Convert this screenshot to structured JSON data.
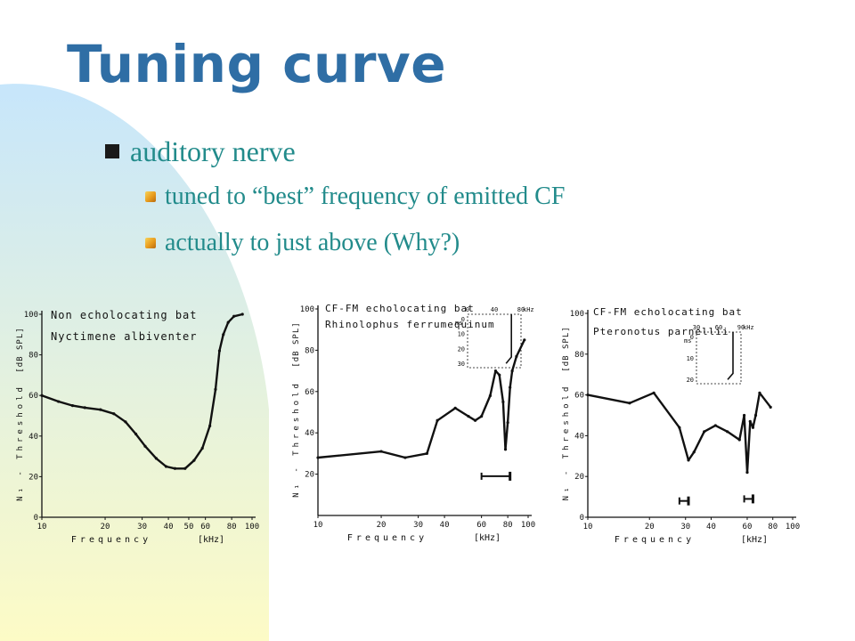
{
  "slide": {
    "title": "Tuning curve",
    "bullet": "auditory nerve",
    "subbullets": [
      "tuned to “best” frequency of emitted CF",
      "actually to just above (Why?)"
    ]
  },
  "colors": {
    "title": "#2f6ea5",
    "text": "#228b8b",
    "bg_gradient_top": "#c7e6fb",
    "bg_gradient_bottom": "#fdfbc6"
  },
  "icons": {
    "bullet": "square-bullet-icon",
    "subbullet": "diamond-bullet-icon"
  },
  "chart_data": [
    {
      "type": "line",
      "title": "Non echolocating bat",
      "subtitle": "Nyctimene albiventer",
      "xlabel": "Frequency",
      "xunit": "[kHz]",
      "ylabel": "N₁ - Threshold",
      "yunit": "[dB SPL]",
      "xscale": "log",
      "xlim": [
        10,
        100
      ],
      "ylim": [
        0,
        100
      ],
      "xticks": [
        "10",
        "20",
        "30",
        "40",
        "50",
        "60",
        "80",
        "100"
      ],
      "yticks": [
        "0",
        "20",
        "40",
        "60",
        "80",
        "100"
      ],
      "series": [
        {
          "x": [
            10,
            12,
            14,
            16,
            19,
            22,
            25,
            28,
            31,
            35,
            39,
            43,
            48,
            53,
            58,
            63,
            67,
            70,
            73,
            77,
            82,
            90
          ],
          "y": [
            60,
            57,
            55,
            54,
            53,
            51,
            47,
            41,
            35,
            29,
            25,
            24,
            24,
            28,
            34,
            45,
            63,
            82,
            90,
            96,
            99,
            100
          ]
        }
      ]
    },
    {
      "type": "line",
      "title": "CF-FM echolocating bat",
      "subtitle": "Rhinolophus ferrumequinum",
      "xlabel": "Frequency",
      "xunit": "[kHz]",
      "ylabel": "N₁ - Threshold",
      "yunit": "[dB SPL]",
      "xscale": "log",
      "xlim": [
        10,
        100
      ],
      "ylim": [
        0,
        100
      ],
      "xticks": [
        "10",
        "20",
        "30",
        "40",
        "60",
        "80",
        "100"
      ],
      "yticks": [
        "20",
        "40",
        "60",
        "80",
        "100"
      ],
      "series": [
        {
          "x": [
            10,
            20,
            26,
            33,
            37,
            45,
            52,
            56,
            60,
            66,
            70,
            73,
            76,
            78,
            80,
            82,
            84,
            88,
            96
          ],
          "y": [
            28,
            31,
            28,
            30,
            46,
            52,
            48,
            46,
            48,
            58,
            70,
            68,
            55,
            32,
            45,
            62,
            70,
            77,
            85
          ]
        }
      ],
      "markers": [
        {
          "x": [
            60,
            82
          ],
          "y": 19
        }
      ],
      "inset": {
        "xticks": [
          "0",
          "40",
          "80"
        ],
        "xunit": "kHz",
        "ylabel": "ms",
        "yticks": [
          "0",
          "10",
          "20",
          "30"
        ]
      }
    },
    {
      "type": "line",
      "title": "CF-FM echolocating bat",
      "subtitle": "Pteronotus parnellii",
      "xlabel": "Frequency",
      "xunit": "[kHz]",
      "ylabel": "N₁ - Threshold",
      "yunit": "[dB SPL]",
      "xscale": "log",
      "xlim": [
        10,
        100
      ],
      "ylim": [
        0,
        100
      ],
      "xticks": [
        "10",
        "20",
        "30",
        "40",
        "60",
        "80",
        "100"
      ],
      "yticks": [
        "0",
        "20",
        "40",
        "60",
        "80",
        "100"
      ],
      "series": [
        {
          "x": [
            10,
            16,
            21,
            28,
            31,
            33,
            37,
            42,
            48,
            55,
            58,
            60,
            62,
            64,
            66,
            69,
            78
          ],
          "y": [
            60,
            56,
            61,
            44,
            28,
            32,
            42,
            45,
            42,
            38,
            50,
            22,
            47,
            44,
            50,
            61,
            54
          ]
        }
      ],
      "markers": [
        {
          "x": [
            28,
            31
          ],
          "y": 8
        },
        {
          "x": [
            58,
            64
          ],
          "y": 9
        }
      ],
      "inset": {
        "xticks": [
          "30",
          "60",
          "90"
        ],
        "xunit": "kHz",
        "ylabel": "ms",
        "yticks": [
          "0",
          "10",
          "20"
        ]
      }
    }
  ]
}
